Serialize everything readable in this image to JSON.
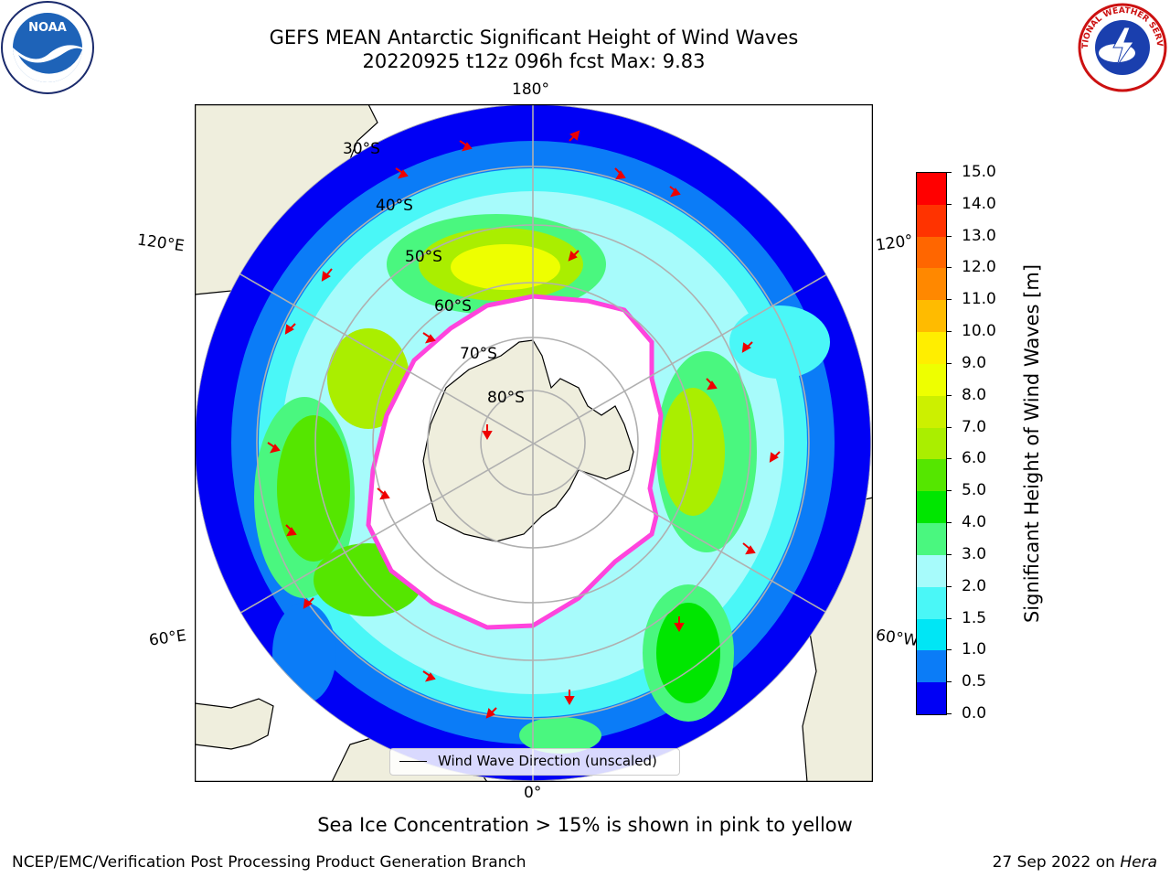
{
  "title": {
    "line1": "GEFS MEAN Antarctic Significant Height of Wind Waves",
    "line2": "20220925 t12z 096h fcst   Max: 9.83"
  },
  "map": {
    "lon_labels": {
      "top": "180°",
      "bottom": "0°",
      "upper_left": "120°E",
      "lower_left": "60°E",
      "upper_right": "120°",
      "lower_right": "60°W"
    },
    "lat_labels": [
      "30°S",
      "40°S",
      "50°S",
      "60°S",
      "70°S",
      "80°S"
    ],
    "legend": "Wind Wave Direction (unscaled)"
  },
  "colorbar": {
    "label": "Significant Height of Wind Waves [m]",
    "ticks": [
      "0.0",
      "0.5",
      "1.0",
      "1.5",
      "2.0",
      "3.0",
      "4.0",
      "5.0",
      "6.0",
      "7.0",
      "8.0",
      "9.0",
      "10.0",
      "11.0",
      "12.0",
      "13.0",
      "14.0",
      "15.0"
    ],
    "colors": [
      "#0000f5",
      "#0b7cf7",
      "#00e6f5",
      "#4af7f7",
      "#a7fbfb",
      "#4af77f",
      "#00e600",
      "#55e600",
      "#aaee00",
      "#ccf000",
      "#eeff00",
      "#ffee00",
      "#ffbb00",
      "#ff8800",
      "#ff6600",
      "#ff3300",
      "#ff0000"
    ]
  },
  "colors": {
    "land": "#efeedd",
    "ocean_outside": "#ffffff",
    "ice": "#ffffff",
    "ice_edge": "#ff44dd",
    "arrow": "#ee0000"
  },
  "note": "Sea Ice Concentration > 15% is shown in pink to yellow",
  "footer": {
    "left": "NCEP/EMC/Verification Post Processing Product Generation Branch",
    "right_prefix": "27 Sep 2022 on",
    "right_host": "Hera"
  },
  "logos": {
    "noaa": "NOAA",
    "nws": "NATIONAL WEATHER SERVICE"
  }
}
